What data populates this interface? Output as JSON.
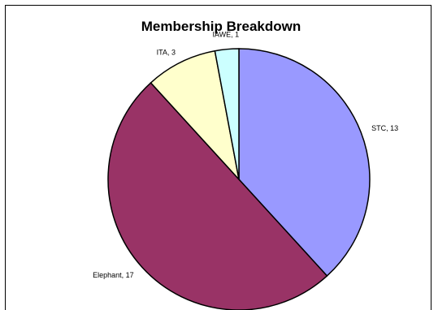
{
  "chart_data": {
    "type": "pie",
    "title": "Membership Breakdown",
    "slices": [
      {
        "label": "STC",
        "value": 13,
        "color": "#9999ff",
        "label_text": "STC, 13"
      },
      {
        "label": "Elephant",
        "value": 17,
        "color": "#993366",
        "label_text": "Elephant, 17"
      },
      {
        "label": "ITA",
        "value": 3,
        "color": "#ffffcc",
        "label_text": "ITA, 3"
      },
      {
        "label": "IAWE",
        "value": 1,
        "color": "#ccffff",
        "label_text": "IAWE, 1"
      }
    ],
    "start": "12 o'clock",
    "direction": "clockwise",
    "legend": "none",
    "slice_border_color": "#000000"
  }
}
